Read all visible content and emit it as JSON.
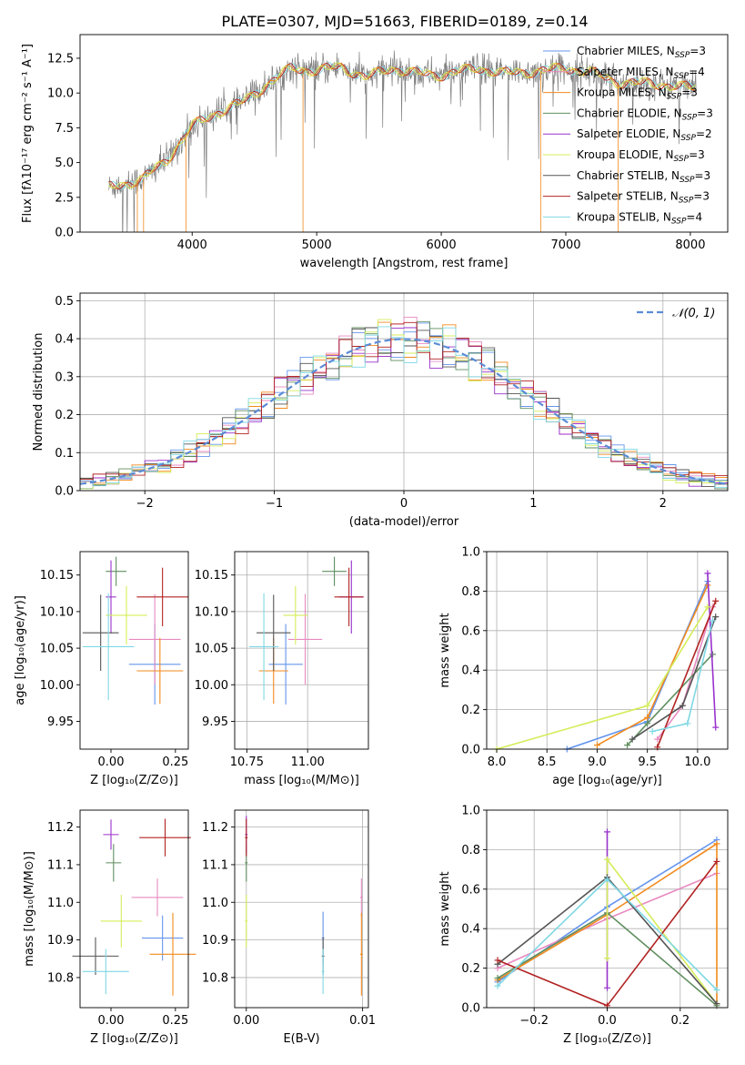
{
  "figure": {
    "title": "PLATE=0307, MJD=51663, FIBERID=0189, z=0.14"
  },
  "legend": {
    "spectrum": [
      {
        "name": "Chabrier MILES",
        "nssp": "3",
        "color": "#6495ed"
      },
      {
        "name": "Salpeter MILES",
        "nssp": "4",
        "color": "#e88ac0"
      },
      {
        "name": "Kroupa MILES",
        "nssp": "3",
        "color": "#f28a1d"
      },
      {
        "name": "Chabrier ELODIE",
        "nssp": "3",
        "color": "#5f8e5f"
      },
      {
        "name": "Salpeter ELODIE",
        "nssp": "2",
        "color": "#9932cc"
      },
      {
        "name": "Kroupa ELODIE",
        "nssp": "3",
        "color": "#d4ed5a"
      },
      {
        "name": "Chabrier STELIB",
        "nssp": "3",
        "color": "#555555"
      },
      {
        "name": "Salpeter STELIB",
        "nssp": "3",
        "color": "#b22222"
      },
      {
        "name": "Kroupa STELIB",
        "nssp": "4",
        "color": "#7fd8e4"
      }
    ],
    "normal": "𝒩(0, 1)"
  },
  "chart_data": [
    {
      "id": "spectrum",
      "type": "line",
      "xlabel": "wavelength [Angstrom, rest frame]",
      "ylabel": "Flux [fλ10⁻¹⁷ erg cm⁻² s⁻¹ A⁻¹]",
      "xlim": [
        3100,
        8300
      ],
      "ylim": [
        0,
        14.2
      ],
      "xticks": [
        "4000",
        "5000",
        "6000",
        "7000",
        "8000"
      ],
      "yticks": [
        "0.0",
        "2.5",
        "5.0",
        "7.5",
        "10.0",
        "12.5"
      ],
      "description_points": [
        [
          3330,
          3.2
        ],
        [
          3600,
          3.8
        ],
        [
          3800,
          5.2
        ],
        [
          4000,
          7.6
        ],
        [
          4200,
          8.6
        ],
        [
          4400,
          9.3
        ],
        [
          4600,
          10.6
        ],
        [
          4800,
          11.8
        ],
        [
          5000,
          11.6
        ],
        [
          5200,
          11.9
        ],
        [
          5400,
          11.1
        ],
        [
          5600,
          11.8
        ],
        [
          5800,
          11.4
        ],
        [
          6000,
          11.3
        ],
        [
          6300,
          11.8
        ],
        [
          6500,
          11.4
        ],
        [
          6800,
          11.6
        ],
        [
          7000,
          11.8
        ],
        [
          7200,
          11.5
        ],
        [
          7400,
          10.8
        ],
        [
          7600,
          10.7
        ],
        [
          7800,
          10.6
        ],
        [
          8050,
          10.3
        ]
      ]
    },
    {
      "id": "residuals",
      "type": "step",
      "xlabel": "(data-model)/error",
      "ylabel": "Normed distribution",
      "xlim": [
        -2.5,
        2.5
      ],
      "ylim": [
        0,
        0.52
      ],
      "xticks": [
        "−2",
        "−1",
        "0",
        "1",
        "2"
      ],
      "yticks": [
        "0.0",
        "0.1",
        "0.2",
        "0.3",
        "0.4",
        "0.5"
      ],
      "normal_curve": {
        "mean": 0,
        "sigma": 1
      }
    },
    {
      "id": "age_vs_Z",
      "type": "errorbar",
      "xlabel": "Z [log₁₀(Z/Z⊙)]",
      "ylabel": "age  [log₁₀(age/yr)]",
      "xlim": [
        -0.12,
        0.3
      ],
      "ylim": [
        9.912,
        10.182
      ],
      "xticks": [
        "0.00",
        "0.25"
      ],
      "yticks": [
        "9.95",
        "10.00",
        "10.05",
        "10.10",
        "10.15"
      ],
      "points": [
        {
          "x": 0.17,
          "xerr": 0.1,
          "y": 10.028,
          "yerr": 0.055
        },
        {
          "x": 0.17,
          "xerr": 0.1,
          "y": 10.062,
          "yerr": 0.062
        },
        {
          "x": 0.19,
          "xerr": 0.09,
          "y": 10.019,
          "yerr": 0.045
        },
        {
          "x": 0.02,
          "xerr": 0.04,
          "y": 10.155,
          "yerr": 0.02
        },
        {
          "x": 0.0,
          "xerr": 0.02,
          "y": 10.12,
          "yerr": 0.05
        },
        {
          "x": 0.06,
          "xerr": 0.08,
          "y": 10.095,
          "yerr": 0.04
        },
        {
          "x": -0.04,
          "xerr": 0.07,
          "y": 10.071,
          "yerr": 0.052
        },
        {
          "x": 0.2,
          "xerr": 0.1,
          "y": 10.12,
          "yerr": 0.04
        },
        {
          "x": -0.01,
          "xerr": 0.1,
          "y": 10.052,
          "yerr": 0.073
        }
      ]
    },
    {
      "id": "age_vs_mass",
      "type": "errorbar",
      "xlabel": "mass [log₁₀(M/M⊙)]",
      "ylabel": "",
      "xlim": [
        10.7,
        11.25
      ],
      "ylim": [
        9.912,
        10.182
      ],
      "xticks": [
        "10.75",
        "11.00"
      ],
      "yticks": [
        "9.95",
        "10.00",
        "10.05",
        "10.10",
        "10.15"
      ],
      "points": [
        {
          "x": 10.91,
          "xerr": 0.07,
          "y": 10.028,
          "yerr": 0.055
        },
        {
          "x": 10.99,
          "xerr": 0.07,
          "y": 10.062,
          "yerr": 0.062
        },
        {
          "x": 10.86,
          "xerr": 0.06,
          "y": 10.019,
          "yerr": 0.045
        },
        {
          "x": 11.11,
          "xerr": 0.05,
          "y": 10.155,
          "yerr": 0.02
        },
        {
          "x": 11.18,
          "xerr": 0.05,
          "y": 10.12,
          "yerr": 0.05
        },
        {
          "x": 10.95,
          "xerr": 0.05,
          "y": 10.095,
          "yerr": 0.04
        },
        {
          "x": 10.86,
          "xerr": 0.07,
          "y": 10.071,
          "yerr": 0.052
        },
        {
          "x": 11.17,
          "xerr": 0.06,
          "y": 10.12,
          "yerr": 0.04
        },
        {
          "x": 10.82,
          "xerr": 0.06,
          "y": 10.052,
          "yerr": 0.073
        }
      ]
    },
    {
      "id": "weight_vs_age",
      "type": "line",
      "xlabel": "age  [log₁₀(age/yr)]",
      "ylabel": "mass weight",
      "xlim": [
        7.9,
        10.3
      ],
      "ylim": [
        0,
        1.0
      ],
      "xticks": [
        "8.0",
        "8.5",
        "9.0",
        "9.5",
        "10.0"
      ],
      "yticks": [
        "0.0",
        "0.2",
        "0.4",
        "0.6",
        "0.8",
        "1.0"
      ],
      "series": [
        {
          "x": [
            8.7,
            9.5,
            10.1
          ],
          "y": [
            0.0,
            0.14,
            0.85
          ]
        },
        {
          "x": [
            9.6,
            9.85,
            10.15
          ],
          "y": [
            0.05,
            0.22,
            0.72
          ]
        },
        {
          "x": [
            9.0,
            9.5,
            10.1
          ],
          "y": [
            0.02,
            0.16,
            0.83
          ]
        },
        {
          "x": [
            9.3,
            9.5,
            10.15
          ],
          "y": [
            0.02,
            0.13,
            0.48
          ]
        },
        {
          "x": [
            10.1,
            10.18
          ],
          "y": [
            0.89,
            0.11
          ]
        },
        {
          "x": [
            8.0,
            9.5,
            10.1
          ],
          "y": [
            0.0,
            0.22,
            0.72
          ]
        },
        {
          "x": [
            9.35,
            9.85,
            10.18
          ],
          "y": [
            0.05,
            0.22,
            0.67
          ]
        },
        {
          "x": [
            9.6,
            10.18
          ],
          "y": [
            0.01,
            0.75
          ]
        },
        {
          "x": [
            9.55,
            9.9,
            10.15
          ],
          "y": [
            0.09,
            0.13,
            0.65
          ]
        }
      ]
    },
    {
      "id": "mass_vs_Z",
      "type": "errorbar",
      "xlabel": "Z [log₁₀(Z/Z⊙)]",
      "ylabel": "mass [log₁₀(M/M⊙)]",
      "xlim": [
        -0.12,
        0.3
      ],
      "ylim": [
        10.72,
        11.245
      ],
      "xticks": [
        "0.00",
        "0.25"
      ],
      "yticks": [
        "10.8",
        "10.9",
        "11.0",
        "11.1",
        "11.2"
      ],
      "points": [
        {
          "x": 0.2,
          "xerr": 0.08,
          "y": 10.905,
          "yerr": 0.06
        },
        {
          "x": 0.18,
          "xerr": 0.1,
          "y": 11.013,
          "yerr": 0.05
        },
        {
          "x": 0.24,
          "xerr": 0.09,
          "y": 10.862,
          "yerr": 0.11
        },
        {
          "x": 0.01,
          "xerr": 0.03,
          "y": 11.105,
          "yerr": 0.05
        },
        {
          "x": 0.0,
          "xerr": 0.03,
          "y": 11.18,
          "yerr": 0.04
        },
        {
          "x": 0.04,
          "xerr": 0.08,
          "y": 10.95,
          "yerr": 0.07
        },
        {
          "x": -0.06,
          "xerr": 0.09,
          "y": 10.857,
          "yerr": 0.05
        },
        {
          "x": 0.21,
          "xerr": 0.1,
          "y": 11.172,
          "yerr": 0.05
        },
        {
          "x": -0.02,
          "xerr": 0.09,
          "y": 10.816,
          "yerr": 0.06
        }
      ]
    },
    {
      "id": "mass_vs_ebv",
      "type": "errorbar",
      "xlabel": "E(B-V)",
      "ylabel": "",
      "xlim": [
        -0.001,
        0.0105
      ],
      "ylim": [
        10.72,
        11.245
      ],
      "xticks": [
        "0.00",
        "0.01"
      ],
      "yticks": [
        "10.8",
        "10.9",
        "11.0",
        "11.1",
        "11.2"
      ],
      "points": [
        {
          "x": 0.0066,
          "y": 10.905,
          "yerr": 0.07
        },
        {
          "x": 0.0099,
          "y": 11.013,
          "yerr": 0.05
        },
        {
          "x": 0.0099,
          "y": 10.862,
          "yerr": 0.11
        },
        {
          "x": 0.0,
          "y": 11.105,
          "yerr": 0.05
        },
        {
          "x": 0.0,
          "y": 11.18,
          "yerr": 0.05
        },
        {
          "x": 0.0,
          "y": 10.95,
          "yerr": 0.07
        },
        {
          "x": 0.0066,
          "y": 10.857,
          "yerr": 0.05
        },
        {
          "x": 0.0,
          "y": 11.172,
          "yerr": 0.05
        },
        {
          "x": 0.0066,
          "y": 10.816,
          "yerr": 0.06
        }
      ]
    },
    {
      "id": "weight_vs_Z",
      "type": "line",
      "xlabel": "Z [log₁₀(Z/Z⊙)]",
      "ylabel": "mass weight",
      "xlim": [
        -0.33,
        0.33
      ],
      "ylim": [
        0,
        1.0
      ],
      "xticks": [
        "−0.2",
        "0.0",
        "0.2"
      ],
      "yticks": [
        "0.0",
        "0.2",
        "0.4",
        "0.6",
        "0.8",
        "1.0"
      ],
      "series": [
        {
          "x": [
            -0.3,
            0.0,
            0.3
          ],
          "y": [
            0.13,
            0.51,
            0.85
          ]
        },
        {
          "x": [
            -0.3,
            0.0,
            0.3
          ],
          "y": [
            0.2,
            0.45,
            0.68
          ]
        },
        {
          "x": [
            -0.3,
            0.0,
            0.3,
            0.3
          ],
          "y": [
            0.14,
            0.47,
            0.83,
            0.02
          ]
        },
        {
          "x": [
            -0.3,
            0.0,
            0.3
          ],
          "y": [
            0.15,
            0.48,
            0.01
          ]
        },
        {
          "x": [
            0.0,
            0.0
          ],
          "y": [
            0.89,
            0.1
          ]
        },
        {
          "x": [
            0.0,
            0.0,
            0.3
          ],
          "y": [
            0.25,
            0.75,
            0.02
          ]
        },
        {
          "x": [
            -0.3,
            0.0,
            0.3
          ],
          "y": [
            0.22,
            0.66,
            0.02
          ]
        },
        {
          "x": [
            -0.3,
            0.0,
            0.3
          ],
          "y": [
            0.24,
            0.01,
            0.74
          ]
        },
        {
          "x": [
            -0.3,
            0.0,
            0.3
          ],
          "y": [
            0.11,
            0.65,
            0.09
          ]
        }
      ]
    }
  ]
}
